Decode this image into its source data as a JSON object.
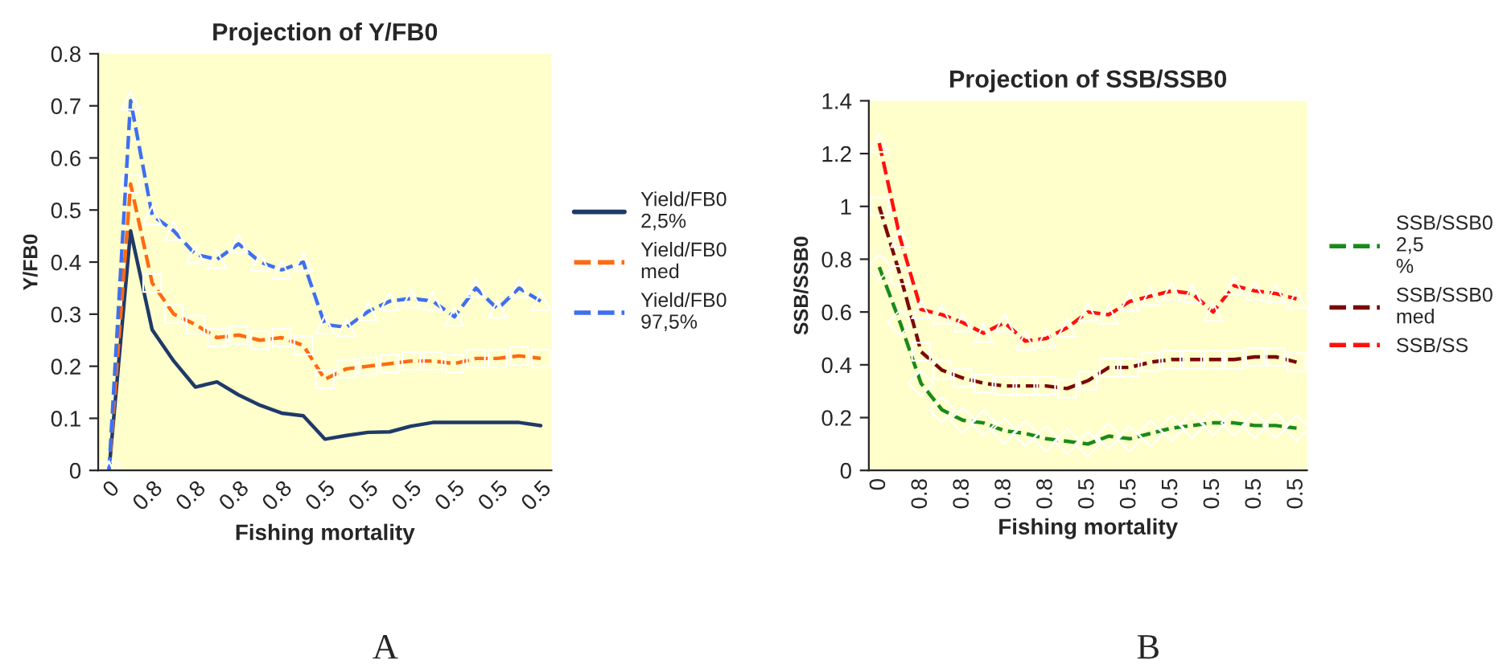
{
  "chart_data": [
    {
      "type": "line",
      "title": "Projection of Y/FB0",
      "xlabel": "Fishing mortality",
      "ylabel": "Y/FB0",
      "categories": [
        "0",
        null,
        "0.8",
        null,
        "0.8",
        null,
        "0.8",
        null,
        "0.8",
        null,
        "0.5",
        null,
        "0.5",
        null,
        "0.5",
        null,
        "0.5",
        null,
        "0.5",
        null,
        "0.5"
      ],
      "series": [
        {
          "name": "Yield/FB0 2,5%",
          "color": "#1f3a68",
          "line_style": "solid",
          "marker": "none",
          "values": [
            0,
            0.46,
            0.27,
            0.21,
            0.16,
            0.17,
            0.145,
            0.125,
            0.11,
            0.105,
            0.06,
            0.067,
            0.073,
            0.074,
            0.085,
            0.092,
            0.092,
            0.092,
            0.092,
            0.092,
            0.086
          ]
        },
        {
          "name": "Yield/FB0 med",
          "color": "#ff6a13",
          "line_style": "dashed",
          "marker": "square",
          "values": [
            0,
            0.55,
            0.36,
            0.3,
            0.28,
            0.255,
            0.26,
            0.25,
            0.255,
            0.24,
            0.175,
            0.195,
            0.2,
            0.205,
            0.21,
            0.21,
            0.205,
            0.215,
            0.215,
            0.22,
            0.215
          ]
        },
        {
          "name": "Yield/FB0 97,5%",
          "color": "#3f6ff0",
          "line_style": "dashed",
          "marker": "triangle",
          "values": [
            0,
            0.71,
            0.49,
            0.46,
            0.415,
            0.405,
            0.435,
            0.4,
            0.385,
            0.4,
            0.28,
            0.275,
            0.305,
            0.325,
            0.33,
            0.325,
            0.295,
            0.35,
            0.31,
            0.35,
            0.325
          ]
        }
      ],
      "ylim": [
        0,
        0.8
      ],
      "yticks": [
        0,
        0.1,
        0.2,
        0.3,
        0.4,
        0.5,
        0.6,
        0.7,
        0.8
      ],
      "grid": false,
      "legend": "right",
      "annotations": [
        "A"
      ]
    },
    {
      "type": "line",
      "title": "Projection of SSB/SSB0",
      "xlabel": "Fishing mortality",
      "ylabel": "SSB/SSB0",
      "categories": [
        "0",
        null,
        "0.8",
        null,
        "0.8",
        null,
        "0.8",
        null,
        "0.8",
        null,
        "0.5",
        null,
        "0.5",
        null,
        "0.5",
        null,
        "0.5",
        null,
        "0.5",
        null,
        "0.5"
      ],
      "series": [
        {
          "name": "SSB/SSB0 2,5 %",
          "color": "#1a8a1a",
          "line_style": "dashed",
          "marker": "diamond",
          "values": [
            0.77,
            0.56,
            0.33,
            0.23,
            0.19,
            0.18,
            0.15,
            0.14,
            0.12,
            0.11,
            0.1,
            0.13,
            0.12,
            0.14,
            0.16,
            0.17,
            0.18,
            0.18,
            0.17,
            0.17,
            0.16
          ]
        },
        {
          "name": "SSB/SSB0 med",
          "color": "#7a0a0a",
          "line_style": "dashed",
          "marker": "square",
          "values": [
            1.0,
            0.74,
            0.45,
            0.38,
            0.35,
            0.33,
            0.32,
            0.32,
            0.32,
            0.31,
            0.34,
            0.39,
            0.39,
            0.41,
            0.42,
            0.42,
            0.42,
            0.42,
            0.43,
            0.43,
            0.41
          ]
        },
        {
          "name": "SSB/SS",
          "color": "#ff1010",
          "line_style": "dashed",
          "marker": "triangle",
          "values": [
            1.24,
            0.88,
            0.61,
            0.59,
            0.56,
            0.52,
            0.56,
            0.49,
            0.5,
            0.54,
            0.6,
            0.59,
            0.64,
            0.66,
            0.68,
            0.67,
            0.6,
            0.7,
            0.68,
            0.67,
            0.65
          ]
        }
      ],
      "ylim": [
        0,
        1.4
      ],
      "yticks": [
        0,
        0.2,
        0.4,
        0.6,
        0.8,
        1,
        1.2,
        1.4
      ],
      "grid": false,
      "legend": "right",
      "annotations": [
        "B"
      ]
    }
  ]
}
